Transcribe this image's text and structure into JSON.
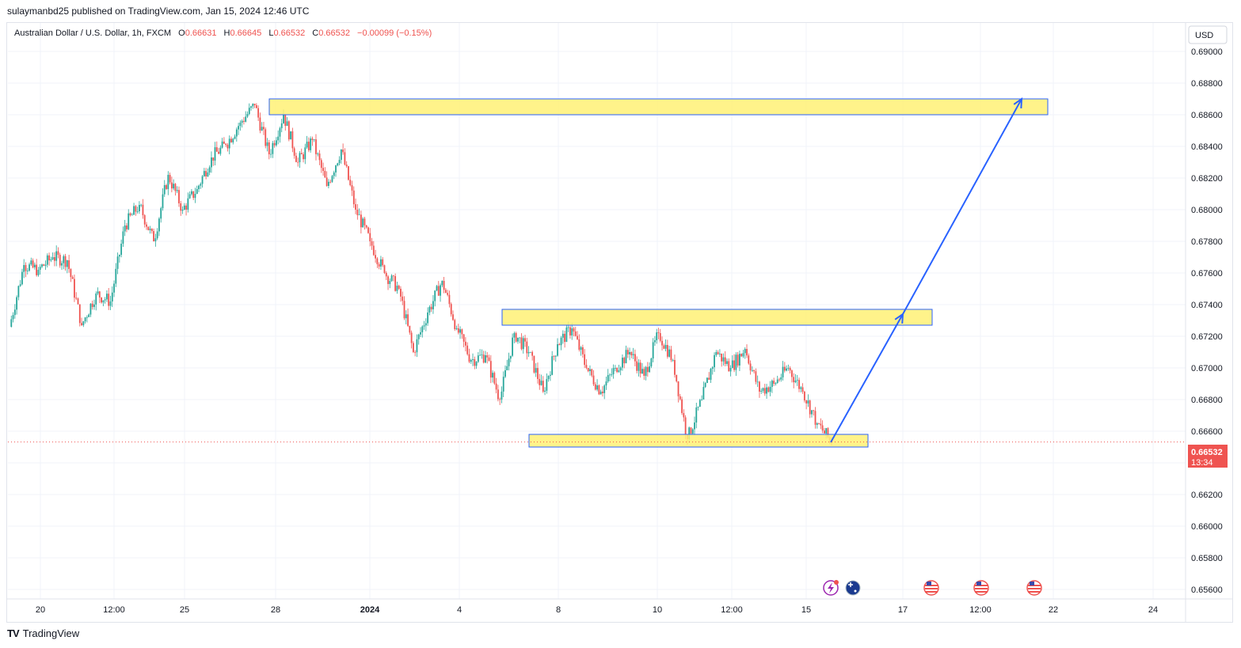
{
  "header": {
    "published_by": "sulaymanbd25 published on TradingView.com, Jan 15, 2024 12:46 UTC"
  },
  "legend": {
    "symbol": "Australian Dollar / U.S. Dollar, 1h, FXCM",
    "open_label": "O",
    "open": "0.66631",
    "high_label": "H",
    "high": "0.66645",
    "low_label": "L",
    "low": "0.66532",
    "close_label": "C",
    "close": "0.66532",
    "change": "−0.00099 (−0.15%)"
  },
  "price_axis": {
    "currency": "USD",
    "current_price": "0.66532",
    "countdown": "13:34"
  },
  "footer": {
    "brand": "TradingView"
  },
  "colors": {
    "up": "#26a69a",
    "down": "#ef5350",
    "zone_fill": "#fff176",
    "zone_border": "#2962ff",
    "arrow": "#2962ff",
    "grid": "#f0f3fa"
  },
  "chart_data": {
    "type": "candlestick",
    "symbol": "AUDUSD",
    "timeframe": "1h",
    "ylim": [
      0.6554,
      0.6918
    ],
    "y_ticks": [
      "0.69000",
      "0.68800",
      "0.68600",
      "0.68400",
      "0.68200",
      "0.68000",
      "0.67800",
      "0.67600",
      "0.67400",
      "0.67200",
      "0.67000",
      "0.66800",
      "0.66600",
      "0.66400",
      "0.66200",
      "0.66000",
      "0.65800",
      "0.65600"
    ],
    "x_ticks": [
      "20",
      "12:00",
      "25",
      "28",
      "2024",
      "4",
      "8",
      "10",
      "12:00",
      "15",
      "17",
      "12:00",
      "22",
      "24"
    ],
    "price_path": [
      {
        "t": "20",
        "p": 0.6726
      },
      {
        "t": "20",
        "p": 0.6765
      },
      {
        "t": "20",
        "p": 0.6762
      },
      {
        "t": "20",
        "p": 0.677
      },
      {
        "t": "20",
        "p": 0.6768
      },
      {
        "t": "12:00",
        "p": 0.6727
      },
      {
        "t": "12:00",
        "p": 0.6747
      },
      {
        "t": "12:00",
        "p": 0.6742
      },
      {
        "t": "12:00",
        "p": 0.679
      },
      {
        "t": "12:00",
        "p": 0.6803
      },
      {
        "t": "25",
        "p": 0.678
      },
      {
        "t": "25",
        "p": 0.6822
      },
      {
        "t": "25",
        "p": 0.68
      },
      {
        "t": "25",
        "p": 0.6813
      },
      {
        "t": "25",
        "p": 0.6833
      },
      {
        "t": "25",
        "p": 0.6841
      },
      {
        "t": "28",
        "p": 0.6855
      },
      {
        "t": "28",
        "p": 0.6866
      },
      {
        "t": "28",
        "p": 0.6835
      },
      {
        "t": "28",
        "p": 0.686
      },
      {
        "t": "28",
        "p": 0.683
      },
      {
        "t": "28",
        "p": 0.6844
      },
      {
        "t": "2024",
        "p": 0.6815
      },
      {
        "t": "2024",
        "p": 0.6838
      },
      {
        "t": "2024",
        "p": 0.68
      },
      {
        "t": "2024",
        "p": 0.678
      },
      {
        "t": "4",
        "p": 0.676
      },
      {
        "t": "4",
        "p": 0.675
      },
      {
        "t": "4",
        "p": 0.671
      },
      {
        "t": "4",
        "p": 0.6735
      },
      {
        "t": "4",
        "p": 0.6755
      },
      {
        "t": "4",
        "p": 0.6725
      },
      {
        "t": "4",
        "p": 0.6705
      },
      {
        "t": "4",
        "p": 0.6708
      },
      {
        "t": "8",
        "p": 0.668
      },
      {
        "t": "8",
        "p": 0.6722
      },
      {
        "t": "8",
        "p": 0.671
      },
      {
        "t": "8",
        "p": 0.6685
      },
      {
        "t": "8",
        "p": 0.6715
      },
      {
        "t": "8",
        "p": 0.6725
      },
      {
        "t": "10",
        "p": 0.67
      },
      {
        "t": "10",
        "p": 0.6685
      },
      {
        "t": "10",
        "p": 0.67
      },
      {
        "t": "10",
        "p": 0.671
      },
      {
        "t": "10",
        "p": 0.6695
      },
      {
        "t": "12:00",
        "p": 0.6722
      },
      {
        "t": "12:00",
        "p": 0.6705
      },
      {
        "t": "12:00",
        "p": 0.6655
      },
      {
        "t": "12:00",
        "p": 0.668
      },
      {
        "t": "12:00",
        "p": 0.671
      },
      {
        "t": "12:00",
        "p": 0.67
      },
      {
        "t": "12:00",
        "p": 0.6712
      },
      {
        "t": "15",
        "p": 0.6685
      },
      {
        "t": "15",
        "p": 0.669
      },
      {
        "t": "15",
        "p": 0.67
      },
      {
        "t": "15",
        "p": 0.6685
      },
      {
        "t": "15",
        "p": 0.6665
      },
      {
        "t": "15",
        "p": 0.6653
      }
    ],
    "zones": [
      {
        "name": "resistance-top",
        "top": 0.687,
        "bottom": 0.686
      },
      {
        "name": "resistance-mid",
        "top": 0.6737,
        "bottom": 0.6727
      },
      {
        "name": "support",
        "top": 0.6658,
        "bottom": 0.665
      }
    ],
    "projection": [
      {
        "t": "15",
        "p": 0.6653
      },
      {
        "t": "17",
        "p": 0.6734
      },
      {
        "t": "22",
        "p": 0.687
      }
    ],
    "current_price": 0.66532,
    "grid": true
  }
}
